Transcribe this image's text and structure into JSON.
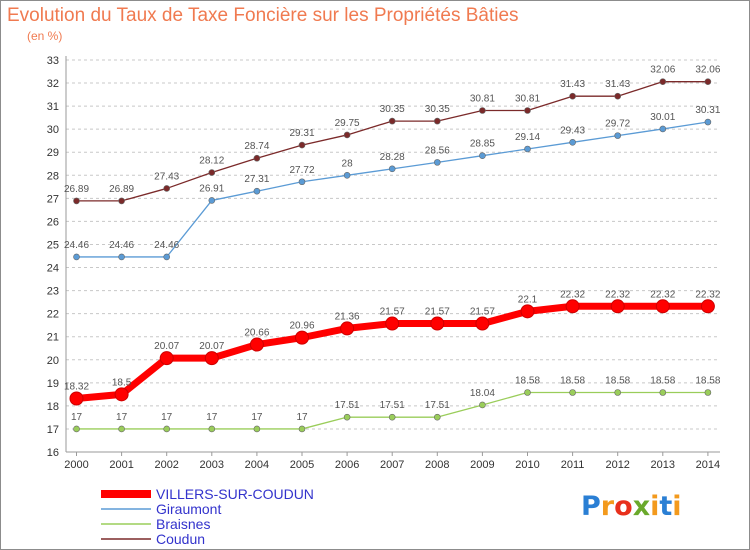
{
  "header": {
    "title": "Evolution du Taux de Taxe Foncière sur les Propriétés Bâties",
    "unit": "(en %)"
  },
  "logo_text": "Proxiti",
  "colors": {
    "title": "#f07a50",
    "grid": "#c8c8c8",
    "legend_text": "#3333cc"
  },
  "chart_data": {
    "type": "line",
    "title": "Evolution du Taux de Taxe Foncière sur les Propriétés Bâties",
    "ylabel": "(en %)",
    "xlabel": "",
    "x": [
      "2000",
      "2001",
      "2002",
      "2003",
      "2004",
      "2005",
      "2006",
      "2007",
      "2008",
      "2009",
      "2010",
      "2011",
      "2012",
      "2013",
      "2014"
    ],
    "ylim": [
      16,
      33
    ],
    "yticks": [
      "16",
      "17",
      "18",
      "19",
      "20",
      "21",
      "22",
      "23",
      "24",
      "25",
      "26",
      "27",
      "28",
      "29",
      "30",
      "31",
      "32",
      "33"
    ],
    "grid": "horizontal dashed",
    "legend_position": "bottom-left",
    "series": [
      {
        "name": "VILLERS-SUR-COUDUN",
        "color": "#ff0000",
        "emphasis": true,
        "values": [
          18.32,
          18.5,
          20.07,
          20.07,
          20.66,
          20.96,
          21.36,
          21.57,
          21.57,
          21.57,
          22.1,
          22.32,
          22.32,
          22.32,
          22.32
        ],
        "labels": [
          "18.32",
          "18.5",
          "20.07",
          "20.07",
          "20.66",
          "20.96",
          "21.36",
          "21.57",
          "21.57",
          "21.57",
          "22.1",
          "22.32",
          "22.32",
          "22.32",
          "22.32"
        ]
      },
      {
        "name": "Giraumont",
        "color": "#5b9bd5",
        "values": [
          24.46,
          24.46,
          24.46,
          26.91,
          27.31,
          27.72,
          28,
          28.28,
          28.56,
          28.85,
          29.14,
          29.43,
          29.72,
          30.01,
          30.31
        ],
        "labels": [
          "24.46",
          "24.46",
          "24.46",
          "26.91",
          "27.31",
          "27.72",
          "28",
          "28.28",
          "28.56",
          "28.85",
          "29.14",
          "29.43",
          "29.72",
          "30.01",
          "30.31"
        ]
      },
      {
        "name": "Braisnes",
        "color": "#9acd5a",
        "values": [
          17,
          17,
          17,
          17,
          17,
          17,
          17.51,
          17.51,
          17.51,
          18.04,
          18.58,
          18.58,
          18.58,
          18.58,
          18.58
        ],
        "labels": [
          "17",
          "17",
          "17",
          "17",
          "17",
          "17",
          "17.51",
          "17.51",
          "17.51",
          "18.04",
          "18.58",
          "18.58",
          "18.58",
          "18.58",
          "18.58"
        ]
      },
      {
        "name": "Coudun",
        "color": "#7b2a2a",
        "values": [
          26.89,
          26.89,
          27.43,
          28.12,
          28.74,
          29.31,
          29.75,
          30.35,
          30.35,
          30.81,
          30.81,
          31.43,
          31.43,
          32.06,
          32.06
        ],
        "labels": [
          "26.89",
          "26.89",
          "27.43",
          "28.12",
          "28.74",
          "29.31",
          "29.75",
          "30.35",
          "30.35",
          "30.81",
          "30.81",
          "31.43",
          "31.43",
          "32.06",
          "32.06"
        ]
      }
    ]
  }
}
